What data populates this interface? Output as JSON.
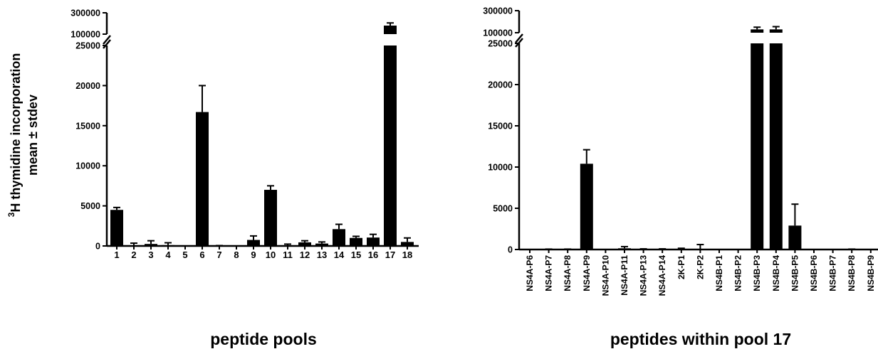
{
  "y_axis": {
    "label_sup": "3",
    "label_main": "H thymidine incorporation",
    "label_line2": "mean ± stdev"
  },
  "chart_data": [
    {
      "type": "bar",
      "xlabel": "peptide pools",
      "ylabel": "3H thymidine incorporation mean ± stdev",
      "ylim": [
        0,
        25000
      ],
      "ylim_upper": [
        100000,
        300000
      ],
      "axis_break": [
        25000,
        100000
      ],
      "y_ticks": [
        "0",
        "5000",
        "10000",
        "15000",
        "20000",
        "25000"
      ],
      "y_ticks_upper": [
        "100000",
        "300000"
      ],
      "categories": [
        "1",
        "2",
        "3",
        "4",
        "5",
        "6",
        "7",
        "8",
        "9",
        "10",
        "11",
        "12",
        "13",
        "14",
        "15",
        "16",
        "17",
        "18"
      ],
      "values": [
        4500,
        50,
        250,
        100,
        0,
        16700,
        0,
        0,
        750,
        7000,
        80,
        450,
        300,
        2100,
        1000,
        1050,
        180000,
        500
      ],
      "errors": [
        300,
        300,
        400,
        300,
        0,
        3300,
        50,
        0,
        500,
        500,
        150,
        200,
        200,
        600,
        200,
        400,
        25000,
        500
      ]
    },
    {
      "type": "bar",
      "xlabel": "peptides within pool 17",
      "ylabel": "",
      "ylim": [
        0,
        25000
      ],
      "ylim_upper": [
        100000,
        300000
      ],
      "axis_break": [
        25000,
        100000
      ],
      "y_ticks": [
        "0",
        "5000",
        "10000",
        "15000",
        "20000",
        "25000"
      ],
      "y_ticks_upper": [
        "100000",
        "300000"
      ],
      "categories": [
        "NS4A-P6",
        "NS4A-P7",
        "NS4A-P8",
        "NS4A-P9",
        "NS4A-P10",
        "NS4A-P11",
        "NS4A-P13",
        "NS4A-P14",
        "2K-P1",
        "2K-P2",
        "NS4B-P1",
        "NS4B-P2",
        "NS4B-P3",
        "NS4B-P4",
        "NS4B-P5",
        "NS4B-P6",
        "NS4B-P7",
        "NS4B-P8",
        "NS4B-P9"
      ],
      "values": [
        0,
        0,
        0,
        10400,
        0,
        150,
        0,
        0,
        0,
        0,
        0,
        0,
        130000,
        130000,
        2900,
        0,
        0,
        0,
        0
      ],
      "errors": [
        0,
        50,
        50,
        1700,
        0,
        200,
        80,
        80,
        150,
        600,
        0,
        0,
        20000,
        25000,
        2600,
        0,
        0,
        50,
        0
      ]
    }
  ]
}
